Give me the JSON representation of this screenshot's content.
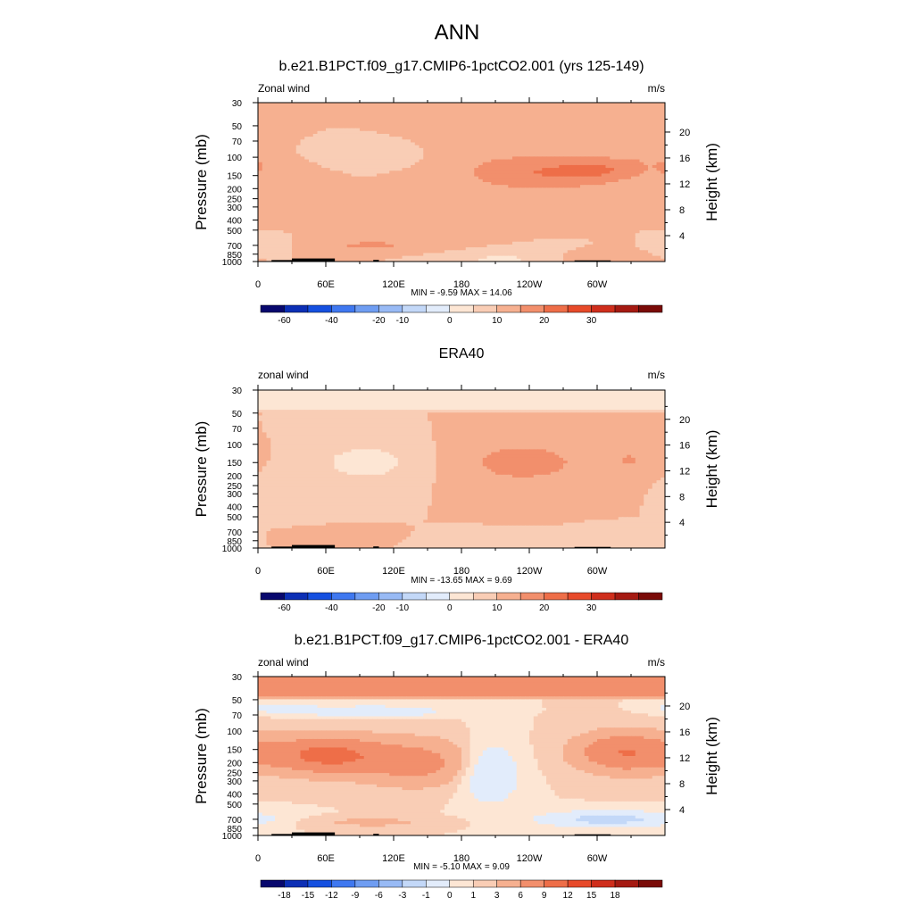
{
  "page": {
    "title": "ANN"
  },
  "panels": [
    {
      "title": "b.e21.B1PCT.f09_g17.CMIP6-1pctCO2.001 (yrs 125-149)",
      "left_label": "Zonal wind",
      "right_label": "m/s",
      "stats": "MIN =  -9.59  MAX =  14.06",
      "colorbar_labels": [
        "-60",
        "-40",
        "-20",
        "-10",
        "0",
        "10",
        "20",
        "30"
      ],
      "colorbar_colors": [
        "#08086e",
        "#0c2fb5",
        "#1550e0",
        "#3f78f0",
        "#6f9df2",
        "#98baf5",
        "#c3d8f8",
        "#e2ecfb",
        "#fde6d4",
        "#f9cdb5",
        "#f6b090",
        "#f28f6c",
        "#ee6e48",
        "#e74a2a",
        "#cf2e1c",
        "#a51a12",
        "#7a0b08"
      ]
    },
    {
      "title": "ERA40",
      "left_label": "zonal wind",
      "right_label": "m/s",
      "stats": "MIN = -13.65  MAX =   9.69",
      "colorbar_labels": [
        "-60",
        "-40",
        "-20",
        "-10",
        "0",
        "10",
        "20",
        "30"
      ],
      "colorbar_colors": [
        "#08086e",
        "#0c2fb5",
        "#1550e0",
        "#3f78f0",
        "#6f9df2",
        "#98baf5",
        "#c3d8f8",
        "#e2ecfb",
        "#fde6d4",
        "#f9cdb5",
        "#f6b090",
        "#f28f6c",
        "#ee6e48",
        "#e74a2a",
        "#cf2e1c",
        "#a51a12",
        "#7a0b08"
      ]
    },
    {
      "title": "b.e21.B1PCT.f09_g17.CMIP6-1pctCO2.001 - ERA40",
      "left_label": "zonal wind",
      "right_label": "m/s",
      "stats": "MIN =  -5.10  MAX =   9.09",
      "colorbar_labels": [
        "-18",
        "-15",
        "-12",
        "-9",
        "-6",
        "-3",
        "-1",
        "0",
        "1",
        "3",
        "6",
        "9",
        "12",
        "15",
        "18"
      ],
      "colorbar_colors": [
        "#08086e",
        "#0c2fb5",
        "#1550e0",
        "#3f78f0",
        "#6f9df2",
        "#98baf5",
        "#c3d8f8",
        "#e2ecfb",
        "#fde6d4",
        "#f9cdb5",
        "#f6b090",
        "#f28f6c",
        "#ee6e48",
        "#e74a2a",
        "#cf2e1c",
        "#a51a12",
        "#7a0b08"
      ]
    }
  ],
  "chart_data": [
    {
      "type": "heatmap",
      "title": "b.e21.B1PCT.f09_g17.CMIP6-1pctCO2.001 (yrs 125-149)",
      "xlabel": "",
      "ylabel": "Pressure (mb)",
      "ylabel_right": "Height (km)",
      "x_ticks": [
        "0",
        "60E",
        "120E",
        "180",
        "120W",
        "60W"
      ],
      "y_ticks": [
        "30",
        "50",
        "70",
        "100",
        "150",
        "200",
        "250",
        "300",
        "400",
        "500",
        "700",
        "850",
        "1000"
      ],
      "y_ticks_right": [
        "20",
        "16",
        "12",
        "8",
        "4"
      ],
      "xlim": [
        0,
        360
      ],
      "ylim": [
        1000,
        30
      ],
      "y_scale": "log",
      "units": "m/s",
      "min": -9.59,
      "max": 14.06,
      "levels": [
        -70,
        -60,
        -50,
        -40,
        -30,
        -20,
        -15,
        -10,
        -5,
        0,
        5,
        10,
        15,
        20,
        25,
        30,
        35
      ],
      "blobs": [
        {
          "lon": 30,
          "p": 200,
          "slon": 18,
          "sp": 0.28,
          "v": 5
        },
        {
          "lon": 0,
          "p": 120,
          "slon": 8,
          "sp": 0.2,
          "v": 4
        },
        {
          "lon": 290,
          "p": 140,
          "slon": 26,
          "sp": 0.26,
          "v": 4
        },
        {
          "lon": 95,
          "p": 100,
          "slon": 22,
          "sp": 0.13,
          "v": -5
        },
        {
          "lon": 235,
          "p": 140,
          "slon": 40,
          "sp": 0.3,
          "v": 9
        },
        {
          "lon": 310,
          "p": 130,
          "slon": 28,
          "sp": 0.2,
          "v": 6
        },
        {
          "lon": 335,
          "p": 120,
          "slon": 10,
          "sp": 0.16,
          "v": 2
        },
        {
          "lon": 100,
          "p": 700,
          "slon": 35,
          "sp": 0.1,
          "v": 6
        },
        {
          "lon": 215,
          "p": 950,
          "slon": 32,
          "sp": 0.1,
          "v": -6
        },
        {
          "lon": 10,
          "p": 700,
          "slon": 10,
          "sp": 0.1,
          "v": -5
        },
        {
          "lon": 300,
          "p": 950,
          "slon": 20,
          "sp": 0.08,
          "v": 5
        }
      ]
    },
    {
      "type": "heatmap",
      "title": "ERA40",
      "xlabel": "",
      "ylabel": "Pressure (mb)",
      "ylabel_right": "Height (km)",
      "x_ticks": [
        "0",
        "60E",
        "120E",
        "180",
        "120W",
        "60W"
      ],
      "y_ticks": [
        "30",
        "50",
        "70",
        "100",
        "150",
        "200",
        "250",
        "300",
        "400",
        "500",
        "700",
        "850",
        "1000"
      ],
      "y_ticks_right": [
        "20",
        "16",
        "12",
        "8",
        "4"
      ],
      "xlim": [
        0,
        360
      ],
      "ylim": [
        1000,
        30
      ],
      "y_scale": "log",
      "units": "m/s",
      "min": -13.65,
      "max": 9.69,
      "levels": [
        -70,
        -60,
        -50,
        -40,
        -30,
        -20,
        -15,
        -10,
        -5,
        0,
        5,
        10,
        15,
        20,
        25,
        30,
        35
      ],
      "blobs": [
        {
          "top_band": true,
          "v": -6
        },
        {
          "lon": 95,
          "p": 150,
          "slon": 30,
          "sp": 0.3,
          "v": -8
        },
        {
          "lon": 30,
          "p": 250,
          "slon": 14,
          "sp": 0.32,
          "v": -4
        },
        {
          "lon": 235,
          "p": 150,
          "slon": 38,
          "sp": 0.32,
          "v": 8
        },
        {
          "lon": 330,
          "p": 140,
          "slon": 18,
          "sp": 0.2,
          "v": 5
        },
        {
          "lon": 55,
          "p": 800,
          "slon": 25,
          "sp": 0.09,
          "v": 5
        },
        {
          "lon": 200,
          "p": 900,
          "slon": 25,
          "sp": 0.1,
          "v": -5
        },
        {
          "lon": 330,
          "p": 800,
          "slon": 20,
          "sp": 0.1,
          "v": -5
        }
      ]
    },
    {
      "type": "heatmap",
      "title": "b.e21.B1PCT.f09_g17.CMIP6-1pctCO2.001 - ERA40",
      "xlabel": "",
      "ylabel": "Pressure (mb)",
      "ylabel_right": "Height (km)",
      "x_ticks": [
        "0",
        "60E",
        "120E",
        "180",
        "120W",
        "60W"
      ],
      "y_ticks": [
        "30",
        "50",
        "70",
        "100",
        "150",
        "200",
        "250",
        "300",
        "400",
        "500",
        "700",
        "850",
        "1000"
      ],
      "y_ticks_right": [
        "20",
        "16",
        "12",
        "8",
        "4"
      ],
      "xlim": [
        0,
        360
      ],
      "ylim": [
        1000,
        30
      ],
      "y_scale": "log",
      "units": "m/s",
      "min": -5.1,
      "max": 9.09,
      "levels": [
        -21,
        -18,
        -15,
        -12,
        -9,
        -6,
        -3,
        -1,
        0,
        1,
        3,
        6,
        9,
        12,
        15,
        18,
        21
      ],
      "blobs": [
        {
          "top_band": true,
          "v": 4
        },
        {
          "lon": 100,
          "p": 65,
          "slon": 40,
          "sp": 0.08,
          "v": -3
        },
        {
          "lon": 20,
          "p": 60,
          "slon": 20,
          "sp": 0.08,
          "v": -2
        },
        {
          "lon": 60,
          "p": 170,
          "slon": 35,
          "sp": 0.28,
          "v": 7
        },
        {
          "lon": 140,
          "p": 200,
          "slon": 35,
          "sp": 0.35,
          "v": 4
        },
        {
          "lon": 205,
          "p": 250,
          "slon": 18,
          "sp": 0.45,
          "v": -3
        },
        {
          "lon": 325,
          "p": 160,
          "slon": 30,
          "sp": 0.3,
          "v": 6
        },
        {
          "lon": 310,
          "p": 700,
          "slon": 40,
          "sp": 0.12,
          "v": -4
        },
        {
          "lon": 100,
          "p": 750,
          "slon": 40,
          "sp": 0.08,
          "v": 1.5
        }
      ]
    }
  ]
}
